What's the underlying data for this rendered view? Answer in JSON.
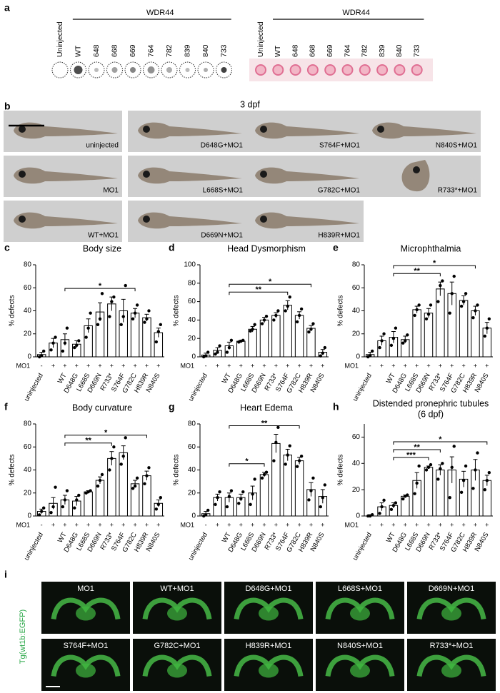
{
  "panel_a": {
    "label": "a",
    "left": {
      "group": "WDR44",
      "lanes": [
        "Uninjected",
        "WT",
        "648",
        "668",
        "669",
        "764",
        "782",
        "839",
        "840",
        "733"
      ]
    },
    "right": {
      "group": "WDR44",
      "lanes": [
        "Uninjected",
        "WT",
        "648",
        "668",
        "669",
        "764",
        "782",
        "839",
        "840",
        "733"
      ]
    }
  },
  "panel_b": {
    "label": "b",
    "title": "3 dpf",
    "images": [
      "uninjected",
      "D648G+MO1",
      "S764F+MO1",
      "N840S+MO1",
      "MO1",
      "L668S+MO1",
      "G782C+MO1",
      "R733*+MO1",
      "WT+MO1",
      "D669N+MO1",
      "H839R+MO1"
    ]
  },
  "chart_labels": [
    "c",
    "d",
    "e",
    "f",
    "g",
    "h"
  ],
  "chart_data": [
    {
      "type": "bar",
      "title": "Body size",
      "ylabel": "% defects",
      "row_label": "MO1",
      "categories": [
        "uninjected",
        null,
        "WT",
        "D648G",
        "L668S",
        "D669N",
        "R733*",
        "S764F",
        "G782C",
        "H839R",
        "N840S"
      ],
      "mo1": [
        "-",
        "+",
        "+",
        "+",
        "+",
        "+",
        "+",
        "+",
        "+",
        "+",
        "+"
      ],
      "values": [
        2,
        12,
        15,
        11,
        27,
        39,
        46,
        40,
        38,
        34,
        21
      ],
      "errors": [
        2,
        4,
        5,
        3,
        6,
        8,
        6,
        10,
        4,
        3,
        4
      ],
      "points": [
        [
          0,
          1,
          5
        ],
        [
          6,
          12,
          17
        ],
        [
          5,
          12,
          25
        ],
        [
          8,
          10,
          14
        ],
        [
          17,
          25,
          38
        ],
        [
          28,
          33,
          55
        ],
        [
          35,
          48,
          52
        ],
        [
          28,
          35,
          62
        ],
        [
          33,
          38,
          45
        ],
        [
          30,
          33,
          40
        ],
        [
          13,
          22,
          28
        ]
      ],
      "ylim": [
        0,
        80
      ],
      "yticks": [
        0,
        20,
        40,
        60,
        80
      ],
      "brackets": [
        {
          "from": "WT",
          "to": "G782C",
          "label": "*"
        }
      ]
    },
    {
      "type": "bar",
      "title": "Head Dysmorphism",
      "ylabel": "% defects",
      "row_label": "MO1",
      "categories": [
        "uninjected",
        null,
        "WT",
        "D648G",
        "L668S",
        "D669N",
        "R733*",
        "S764F",
        "G782C",
        "H839R",
        "N840S"
      ],
      "mo1": [
        "-",
        "+",
        "+",
        "+",
        "+",
        "+",
        "+",
        "+",
        "+",
        "+",
        "+"
      ],
      "values": [
        2,
        7,
        12,
        17,
        30,
        40,
        45,
        56,
        45,
        31,
        5
      ],
      "errors": [
        2,
        3,
        4,
        1,
        3,
        3,
        3,
        5,
        4,
        3,
        3
      ],
      "points": [
        [
          0,
          1,
          5
        ],
        [
          3,
          5,
          12
        ],
        [
          5,
          10,
          18
        ],
        [
          16,
          17,
          18
        ],
        [
          28,
          30,
          35
        ],
        [
          36,
          40,
          44
        ],
        [
          40,
          45,
          50
        ],
        [
          50,
          55,
          65
        ],
        [
          38,
          45,
          52
        ],
        [
          27,
          30,
          36
        ],
        [
          1,
          4,
          10
        ]
      ],
      "ylim": [
        0,
        100
      ],
      "yticks": [
        0,
        20,
        40,
        60,
        80,
        100
      ],
      "brackets": [
        {
          "from": "WT",
          "to": "S764F",
          "label": "**"
        },
        {
          "from": "WT",
          "to": "H839R",
          "label": "*"
        }
      ]
    },
    {
      "type": "bar",
      "title": "Microphthalmia",
      "ylabel": "% defects",
      "row_label": "MO1",
      "categories": [
        "uninjected",
        null,
        "WT",
        "D648G",
        "L668S",
        "D669N",
        "R733*",
        "S764F",
        "G782C",
        "H839R",
        "N840S"
      ],
      "mo1": [
        "-",
        "+",
        "+",
        "+",
        "+",
        "+",
        "+",
        "+",
        "+",
        "+",
        "+"
      ],
      "values": [
        2,
        14,
        17,
        15,
        41,
        38,
        59,
        55,
        49,
        40,
        25
      ],
      "errors": [
        2,
        4,
        5,
        3,
        3,
        4,
        6,
        10,
        4,
        4,
        5
      ],
      "points": [
        [
          0,
          1,
          5
        ],
        [
          8,
          14,
          20
        ],
        [
          10,
          16,
          25
        ],
        [
          12,
          14,
          19
        ],
        [
          36,
          41,
          45
        ],
        [
          33,
          37,
          45
        ],
        [
          48,
          62,
          66
        ],
        [
          38,
          55,
          70
        ],
        [
          44,
          48,
          55
        ],
        [
          34,
          40,
          45
        ],
        [
          18,
          25,
          33
        ]
      ],
      "ylim": [
        0,
        80
      ],
      "yticks": [
        0,
        20,
        40,
        60,
        80
      ],
      "brackets": [
        {
          "from": "WT",
          "to": "R733*",
          "label": "**"
        },
        {
          "from": "WT",
          "to": "H839R",
          "label": "*"
        }
      ]
    },
    {
      "type": "bar",
      "title": "Body curvature",
      "ylabel": "% defects",
      "row_label": "MO1",
      "categories": [
        "uninjected",
        null,
        "WT",
        "D648G",
        "L668S",
        "D669N",
        "R733*",
        "S764F",
        "G782C",
        "H839R",
        "N840S"
      ],
      "mo1": [
        "-",
        "+",
        "+",
        "+",
        "+",
        "+",
        "+",
        "+",
        "+",
        "+",
        "+"
      ],
      "values": [
        4,
        11,
        14,
        13,
        21,
        31,
        50,
        55,
        28,
        35,
        11
      ],
      "errors": [
        2,
        5,
        4,
        4,
        1,
        3,
        6,
        6,
        3,
        4,
        3
      ],
      "points": [
        [
          1,
          4,
          7
        ],
        [
          3,
          8,
          25
        ],
        [
          8,
          14,
          22
        ],
        [
          7,
          14,
          18
        ],
        [
          20,
          21,
          22
        ],
        [
          26,
          31,
          36
        ],
        [
          40,
          50,
          60
        ],
        [
          45,
          52,
          68
        ],
        [
          24,
          26,
          33
        ],
        [
          28,
          35,
          42
        ],
        [
          6,
          10,
          16
        ]
      ],
      "ylim": [
        0,
        80
      ],
      "yticks": [
        0,
        20,
        40,
        60,
        80
      ],
      "brackets": [
        {
          "from": "WT",
          "to": "R733*",
          "label": "**"
        },
        {
          "from": "WT",
          "to": "H839R",
          "label": "*"
        }
      ]
    },
    {
      "type": "bar",
      "title": "Heart Edema",
      "ylabel": "% defects",
      "row_label": "MO1",
      "categories": [
        "uninjected",
        null,
        "WT",
        "D648G",
        "L668S",
        "D669N",
        "R733*",
        "S764F",
        "G782C",
        "H839R",
        "N840S"
      ],
      "mo1": [
        "-",
        "+",
        "+",
        "+",
        "+",
        "+",
        "+",
        "+",
        "+",
        "+",
        "+"
      ],
      "values": [
        2,
        16,
        16,
        16,
        20,
        36,
        63,
        53,
        48,
        23,
        17
      ],
      "errors": [
        2,
        3,
        4,
        3,
        6,
        2,
        8,
        5,
        3,
        6,
        6
      ],
      "points": [
        [
          0,
          1,
          5
        ],
        [
          10,
          16,
          21
        ],
        [
          8,
          17,
          22
        ],
        [
          11,
          15,
          21
        ],
        [
          10,
          19,
          32
        ],
        [
          33,
          36,
          38
        ],
        [
          48,
          64,
          77
        ],
        [
          45,
          53,
          61
        ],
        [
          43,
          48,
          52
        ],
        [
          14,
          22,
          33
        ],
        [
          8,
          16,
          27
        ]
      ],
      "ylim": [
        0,
        80
      ],
      "yticks": [
        0,
        20,
        40,
        60,
        80
      ],
      "brackets": [
        {
          "from": "WT",
          "to": "D669N",
          "label": "*"
        },
        {
          "from": "WT",
          "to": "G782C",
          "label": "**"
        }
      ]
    },
    {
      "type": "bar",
      "title": "Distended pronephric tubules",
      "subtitle": "(6 dpf)",
      "ylabel": "% defects",
      "row_label": "MO1",
      "categories": [
        "uninjected",
        null,
        "WT",
        "D648G",
        "L668S",
        "D669N",
        "R733*",
        "S764F",
        "G782C",
        "H839R",
        "N840S"
      ],
      "mo1": [
        "-",
        "+",
        "+",
        "+",
        "+",
        "+",
        "+",
        "+",
        "+",
        "+",
        "+"
      ],
      "values": [
        0,
        7,
        8,
        15,
        27,
        37,
        35,
        35,
        28,
        35,
        27
      ],
      "errors": [
        1,
        3,
        2,
        1,
        6,
        1,
        4,
        10,
        6,
        8,
        4
      ],
      "points": [
        [
          0,
          0,
          1
        ],
        [
          2,
          7,
          12
        ],
        [
          5,
          8,
          10
        ],
        [
          13,
          15,
          16
        ],
        [
          17,
          25,
          38
        ],
        [
          35,
          37,
          39
        ],
        [
          28,
          36,
          40
        ],
        [
          14,
          37,
          53
        ],
        [
          18,
          27,
          38
        ],
        [
          21,
          35,
          48
        ],
        [
          20,
          27,
          33
        ]
      ],
      "ylim": [
        0,
        70
      ],
      "yticks": [
        0,
        20,
        40,
        60
      ],
      "brackets": [
        {
          "from": "WT",
          "to": "D669N",
          "label": "***"
        },
        {
          "from": "WT",
          "to": "R733*",
          "label": "**"
        },
        {
          "from": "WT",
          "to": "N840S",
          "label": "*"
        }
      ]
    }
  ],
  "panel_i": {
    "label": "i",
    "side_label": "Tg(wt1b:EGFP)",
    "images": [
      "MO1",
      "WT+MO1",
      "D648G+MO1",
      "L668S+MO1",
      "D669N+MO1",
      "S764F+MO1",
      "G782C+MO1",
      "H839R+MO1",
      "N840S+MO1",
      "R733*+MO1"
    ]
  }
}
